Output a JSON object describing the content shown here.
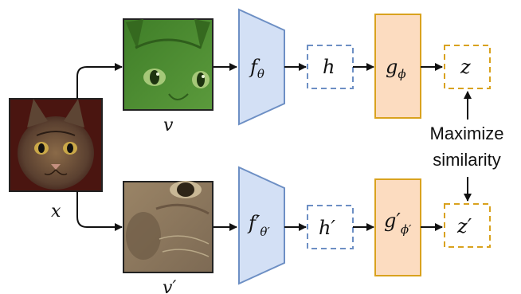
{
  "labels": {
    "x": "x",
    "v": "v",
    "v_prime": "v′",
    "f_theta": "fθ",
    "f_theta_prime": "f′θ′",
    "h": "h",
    "h_prime": "h′",
    "g_phi": "gϕ",
    "g_phi_prime": "g′ϕ′",
    "z": "z",
    "z_prime": "z′",
    "maximize_line1": "Maximize",
    "maximize_line2": "similarity"
  },
  "colors": {
    "encoder_fill": "#d3e0f5",
    "encoder_stroke": "#6d8fc4",
    "projector_fill": "#fcdcc0",
    "projector_stroke": "#d9a21e",
    "h_dash": "#6d8fc4",
    "z_dash": "#d9a21e",
    "arrow": "#111111",
    "view_v_tint": "#4a8a2e",
    "view_vprime_tint": "#8a7358"
  },
  "images": {
    "input": "cat-face-photo",
    "view_v": "green-tinted-cat-crop",
    "view_v_prime": "desaturated-zoomed-cat-crop"
  }
}
